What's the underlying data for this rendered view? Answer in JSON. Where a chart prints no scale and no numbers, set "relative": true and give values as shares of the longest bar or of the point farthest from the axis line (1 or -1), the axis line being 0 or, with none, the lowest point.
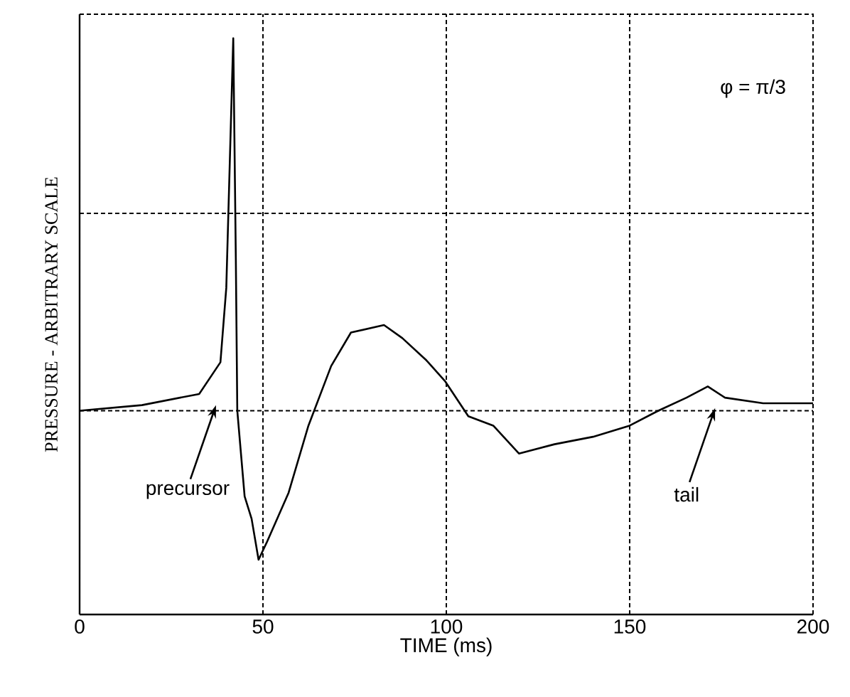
{
  "chart_data": {
    "type": "line",
    "xlabel": "TIME (ms)",
    "ylabel": "PRESSURE - ARBITRARY SCALE",
    "relative": true,
    "grid": "x",
    "xlim": [
      0,
      200
    ],
    "xticks": [
      0,
      50,
      100,
      150,
      200
    ],
    "series": [
      {
        "color": "#000000",
        "x": [
          0,
          17,
          32.6,
          38.4,
          40,
          41.9,
          42.6,
          43,
          45,
          46.9,
          48.8,
          51.2,
          57,
          62.4,
          68.6,
          74,
          83,
          88,
          94.6,
          99.6,
          106,
          112.8,
          119.8,
          129.5,
          140,
          150,
          157.8,
          165.5,
          171.3,
          176,
          186.4,
          200
        ],
        "values": [
          0,
          0.015,
          0.045,
          0.13,
          0.33,
          1.0,
          0.41,
          0,
          -0.23,
          -0.29,
          -0.4,
          -0.35,
          -0.22,
          -0.04,
          0.12,
          0.21,
          0.23,
          0.195,
          0.135,
          0.08,
          -0.015,
          -0.04,
          -0.115,
          -0.09,
          -0.07,
          -0.04,
          0,
          0.035,
          0.065,
          0.035,
          0.02,
          0.02
        ]
      }
    ],
    "ref_lines": [
      {
        "axis": "y",
        "value": 0,
        "line_style": "dashed",
        "color": "#000000"
      },
      {
        "axis": "y",
        "value": 0.53,
        "line_style": "dashed",
        "color": "#000000"
      }
    ],
    "annotations": [
      {
        "text": "precursor",
        "x": 37.2,
        "y": 0.015
      },
      {
        "text": "tail",
        "x": 173.3,
        "y": 0.007
      },
      "φ = π/3"
    ]
  }
}
